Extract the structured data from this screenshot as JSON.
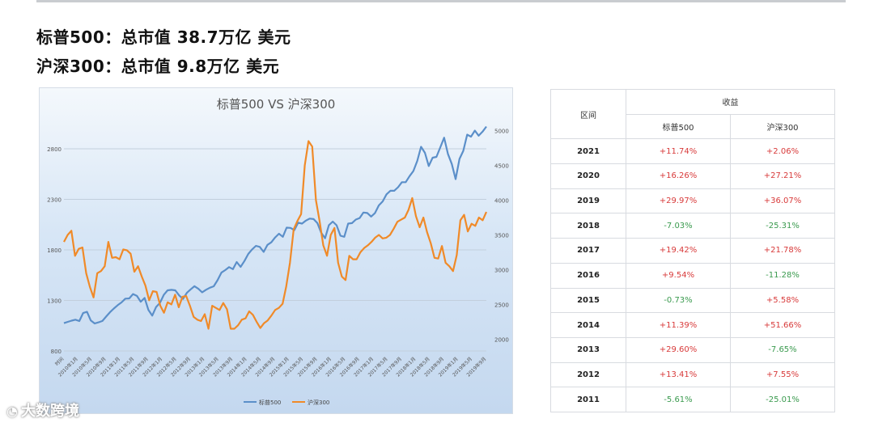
{
  "headlines": {
    "line1": "标普500：总市值 38.7万亿 美元",
    "line2": "沪深300：总市值 9.8万亿 美元"
  },
  "chart_data": {
    "type": "line",
    "title": "标普500 VS 沪深300",
    "left_axis": {
      "ticks": [
        800,
        1300,
        1800,
        2300,
        2800
      ],
      "range": [
        800,
        3000
      ]
    },
    "right_axis": {
      "ticks": [
        2000,
        2500,
        3000,
        3500,
        4000,
        4500,
        5000
      ],
      "range": [
        1830,
        5030
      ]
    },
    "x_ticks": [
      "时间",
      "2010年1月",
      "2010年5月",
      "2010年9月",
      "2011年1月",
      "2011年5月",
      "2011年9月",
      "2012年1月",
      "2012年5月",
      "2012年9月",
      "2013年1月",
      "2013年5月",
      "2013年9月",
      "2014年1月",
      "2014年5月",
      "2014年9月",
      "2015年1月",
      "2015年5月",
      "2015年9月",
      "2016年1月",
      "2016年5月",
      "2016年9月",
      "2017年1月",
      "2017年5月",
      "2017年9月",
      "2018年1月",
      "2018年5月",
      "2018年9月",
      "2019年1月",
      "2019年5月",
      "2019年9月"
    ],
    "series": [
      {
        "name": "标普500",
        "color": "#5b8fc9",
        "axis": "left",
        "values": [
          1075,
          1088,
          1100,
          1110,
          1096,
          1175,
          1187,
          1102,
          1072,
          1083,
          1097,
          1141,
          1183,
          1220,
          1253,
          1281,
          1318,
          1320,
          1363,
          1345,
          1287,
          1325,
          1206,
          1150,
          1235,
          1275,
          1355,
          1400,
          1405,
          1400,
          1350,
          1315,
          1375,
          1410,
          1441,
          1415,
          1380,
          1406,
          1426,
          1440,
          1500,
          1575,
          1600,
          1630,
          1610,
          1680,
          1632,
          1690,
          1760,
          1805,
          1840,
          1830,
          1780,
          1850,
          1875,
          1923,
          1960,
          1930,
          2020,
          2018,
          1995,
          2070,
          2060,
          2090,
          2110,
          2105,
          2065,
          1970,
          1915,
          2045,
          2080,
          2044,
          1940,
          1930,
          2060,
          2065,
          2100,
          2115,
          2170,
          2165,
          2130,
          2165,
          2240,
          2280,
          2350,
          2385,
          2385,
          2420,
          2470,
          2470,
          2530,
          2580,
          2680,
          2820,
          2760,
          2630,
          2712,
          2720,
          2815,
          2910,
          2750,
          2650,
          2500,
          2700,
          2780,
          2940,
          2920,
          2980,
          2930,
          2970,
          3020
        ]
      },
      {
        "name": "沪深300",
        "color": "#f08a28",
        "axis": "right",
        "values": [
          3400,
          3500,
          3560,
          3200,
          3300,
          3320,
          2950,
          2750,
          2600,
          2950,
          2980,
          3050,
          3400,
          3170,
          3180,
          3150,
          3290,
          3280,
          3230,
          2970,
          3050,
          2900,
          2770,
          2560,
          2690,
          2680,
          2480,
          2380,
          2530,
          2500,
          2640,
          2460,
          2610,
          2620,
          2480,
          2320,
          2280,
          2260,
          2360,
          2150,
          2480,
          2450,
          2420,
          2520,
          2430,
          2150,
          2150,
          2200,
          2280,
          2300,
          2400,
          2350,
          2250,
          2160,
          2230,
          2270,
          2340,
          2420,
          2450,
          2510,
          2760,
          3100,
          3580,
          3700,
          3800,
          4500,
          4850,
          4770,
          4000,
          3700,
          3350,
          3200,
          3500,
          3600,
          3100,
          2900,
          2850,
          3200,
          3150,
          3150,
          3250,
          3310,
          3350,
          3400,
          3460,
          3500,
          3450,
          3460,
          3500,
          3590,
          3690,
          3720,
          3750,
          3860,
          4030,
          3770,
          3610,
          3750,
          3540,
          3380,
          3170,
          3160,
          3340,
          3100,
          3050,
          2980,
          3210,
          3710,
          3790,
          3550,
          3660,
          3630,
          3750,
          3710,
          3830
        ]
      }
    ]
  },
  "table": {
    "header_interval": "区间",
    "header_returns": "收益",
    "col1": "标普500",
    "col2": "沪深300",
    "rows": [
      {
        "year": "2021",
        "sp": "+11.74%",
        "sp_sign": "pos",
        "hs": "+2.06%",
        "hs_sign": "pos"
      },
      {
        "year": "2020",
        "sp": "+16.26%",
        "sp_sign": "pos",
        "hs": "+27.21%",
        "hs_sign": "pos"
      },
      {
        "year": "2019",
        "sp": "+29.97%",
        "sp_sign": "pos",
        "hs": "+36.07%",
        "hs_sign": "pos"
      },
      {
        "year": "2018",
        "sp": "-7.03%",
        "sp_sign": "neg",
        "hs": "-25.31%",
        "hs_sign": "neg"
      },
      {
        "year": "2017",
        "sp": "+19.42%",
        "sp_sign": "pos",
        "hs": "+21.78%",
        "hs_sign": "pos"
      },
      {
        "year": "2016",
        "sp": "+9.54%",
        "sp_sign": "pos",
        "hs": "-11.28%",
        "hs_sign": "neg"
      },
      {
        "year": "2015",
        "sp": "-0.73%",
        "sp_sign": "neg",
        "hs": "+5.58%",
        "hs_sign": "pos"
      },
      {
        "year": "2014",
        "sp": "+11.39%",
        "sp_sign": "pos",
        "hs": "+51.66%",
        "hs_sign": "pos"
      },
      {
        "year": "2013",
        "sp": "+29.60%",
        "sp_sign": "pos",
        "hs": "-7.65%",
        "hs_sign": "neg"
      },
      {
        "year": "2012",
        "sp": "+13.41%",
        "sp_sign": "pos",
        "hs": "+7.55%",
        "hs_sign": "pos"
      },
      {
        "year": "2011",
        "sp": "-5.61%",
        "sp_sign": "neg",
        "hs": "-25.01%",
        "hs_sign": "neg"
      }
    ]
  },
  "watermark": {
    "icon": "weibo-icon",
    "text": "大数跨境"
  }
}
